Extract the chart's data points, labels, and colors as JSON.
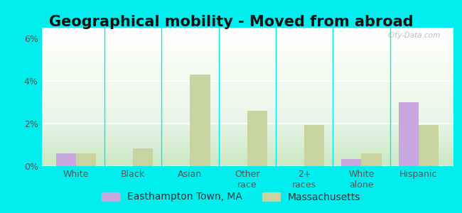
{
  "title": "Geographical mobility - Moved from abroad",
  "categories": [
    "White",
    "Black",
    "Asian",
    "Other\nrace",
    "2+\nraces",
    "White\nalone",
    "Hispanic"
  ],
  "easthampton_values": [
    0.6,
    0.0,
    0.0,
    0.0,
    0.0,
    0.35,
    3.0
  ],
  "massachusetts_values": [
    0.6,
    0.85,
    4.3,
    2.6,
    1.95,
    0.6,
    1.95
  ],
  "easthampton_color": "#c9a8e0",
  "massachusetts_color": "#c8d4a0",
  "ylim_max": 6.5,
  "yticks": [
    0,
    2,
    4,
    6
  ],
  "ytick_labels": [
    "0%",
    "2%",
    "4%",
    "6%"
  ],
  "outer_background": "#00eeee",
  "legend_label1": "Easthampton Town, MA",
  "legend_label2": "Massachusetts",
  "title_fontsize": 15,
  "tick_fontsize": 9,
  "legend_fontsize": 10,
  "bar_width": 0.35
}
